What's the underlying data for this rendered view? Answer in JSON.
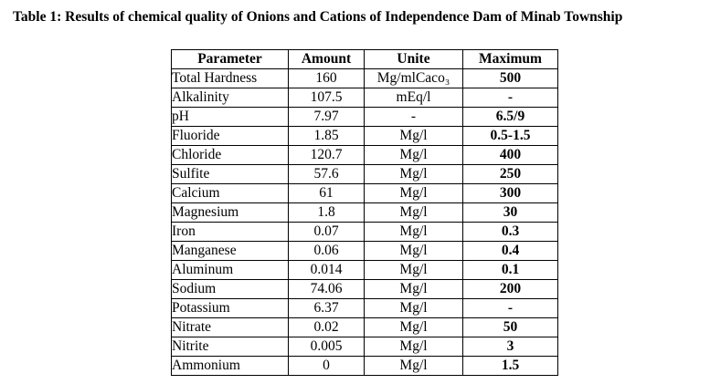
{
  "caption": "Table 1: Results of chemical quality of Onions and Cations of Independence Dam of Minab Township",
  "table": {
    "headers": [
      "Parameter",
      "Amount",
      "Unite",
      "Maximum"
    ],
    "rows": [
      [
        "Total Hardness",
        "160",
        "Mg/mlCaco₃",
        "500"
      ],
      [
        "Alkalinity",
        "107.5",
        "mEq/l",
        "-"
      ],
      [
        "pH",
        "7.97",
        "-",
        "6.5/9"
      ],
      [
        "Fluoride",
        "1.85",
        "Mg/l",
        "0.5-1.5"
      ],
      [
        "Chloride",
        "120.7",
        "Mg/l",
        "400"
      ],
      [
        "Sulfite",
        "57.6",
        "Mg/l",
        "250"
      ],
      [
        "Calcium",
        "61",
        "Mg/l",
        "300"
      ],
      [
        "Magnesium",
        "1.8",
        "Mg/l",
        "30"
      ],
      [
        "Iron",
        "0.07",
        "Mg/l",
        "0.3"
      ],
      [
        "Manganese",
        "0.06",
        "Mg/l",
        "0.4"
      ],
      [
        "Aluminum",
        "0.014",
        "Mg/l",
        "0.1"
      ],
      [
        "Sodium",
        "74.06",
        "Mg/l",
        "200"
      ],
      [
        "Potassium",
        "6.37",
        "Mg/l",
        "-"
      ],
      [
        "Nitrate",
        "0.02",
        "Mg/l",
        "50"
      ],
      [
        "Nitrite",
        "0.005",
        "Mg/l",
        "3"
      ],
      [
        "Ammonium",
        "0",
        "Mg/l",
        "1.5"
      ]
    ]
  }
}
